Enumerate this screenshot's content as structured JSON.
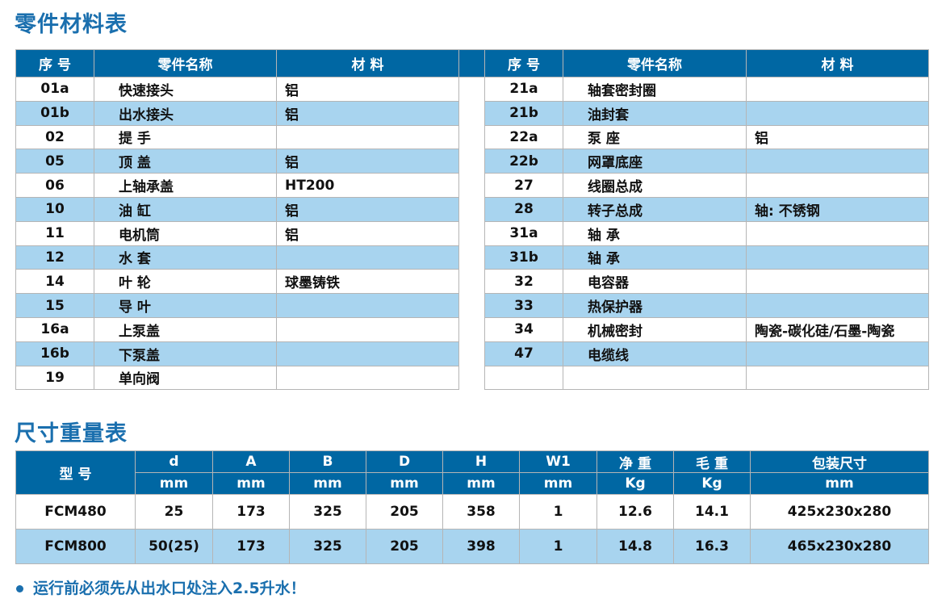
{
  "parts": {
    "title": "零件材料表",
    "headers": [
      "序 号",
      "零件名称",
      "材 料"
    ],
    "left": [
      [
        "01a",
        "快速接头",
        "铝"
      ],
      [
        "01b",
        "出水接头",
        "铝"
      ],
      [
        "02",
        "提 手",
        ""
      ],
      [
        "05",
        "顶 盖",
        "铝"
      ],
      [
        "06",
        "上轴承盖",
        "HT200"
      ],
      [
        "10",
        "油 缸",
        "铝"
      ],
      [
        "11",
        "电机筒",
        "铝"
      ],
      [
        "12",
        "水 套",
        ""
      ],
      [
        "14",
        "叶 轮",
        "球墨铸铁"
      ],
      [
        "15",
        "导 叶",
        ""
      ],
      [
        "16a",
        "上泵盖",
        ""
      ],
      [
        "16b",
        "下泵盖",
        ""
      ],
      [
        "19",
        "单向阀",
        ""
      ]
    ],
    "right": [
      [
        "21a",
        "轴套密封圈",
        ""
      ],
      [
        "21b",
        "油封套",
        ""
      ],
      [
        "22a",
        "泵 座",
        "铝"
      ],
      [
        "22b",
        "网罩底座",
        ""
      ],
      [
        "27",
        "线圈总成",
        ""
      ],
      [
        "28",
        "转子总成",
        "轴: 不锈钢"
      ],
      [
        "31a",
        "轴 承",
        ""
      ],
      [
        "31b",
        "轴 承",
        ""
      ],
      [
        "32",
        "电容器",
        ""
      ],
      [
        "33",
        "热保护器",
        ""
      ],
      [
        "34",
        "机械密封",
        "陶瓷-碳化硅/石墨-陶瓷"
      ],
      [
        "47",
        "电缆线",
        ""
      ],
      [
        "",
        "",
        ""
      ]
    ]
  },
  "dims": {
    "title": "尺寸重量表",
    "model_header": "型 号",
    "headers": [
      "d",
      "A",
      "B",
      "D",
      "H",
      "W1",
      "净 重",
      "毛 重",
      "包装尺寸"
    ],
    "units": [
      "mm",
      "mm",
      "mm",
      "mm",
      "mm",
      "mm",
      "Kg",
      "Kg",
      "mm"
    ],
    "rows": [
      [
        "FCM480",
        "25",
        "173",
        "325",
        "205",
        "358",
        "1",
        "12.6",
        "14.1",
        "425x230x280"
      ],
      [
        "FCM800",
        "50(25)",
        "173",
        "325",
        "205",
        "398",
        "1",
        "14.8",
        "16.3",
        "465x230x280"
      ]
    ]
  },
  "note": "运行前必须先从出水口处注入2.5升水！",
  "colors": {
    "header": "#0067a3",
    "stripe": "#a8d4ef",
    "title": "#1a6fae"
  }
}
